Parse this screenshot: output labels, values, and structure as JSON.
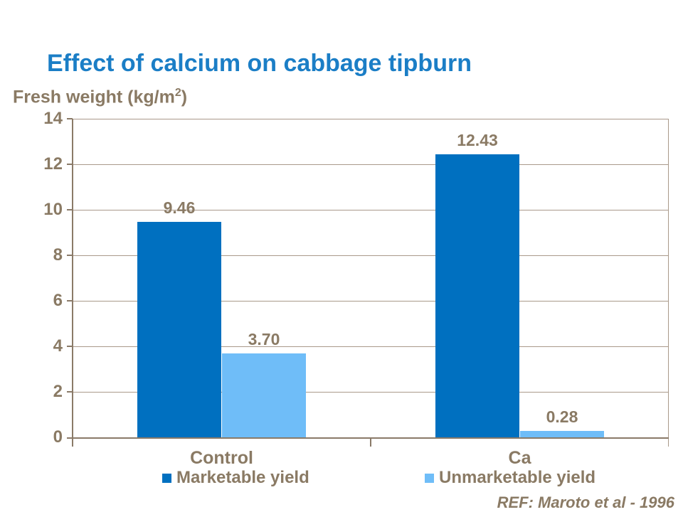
{
  "slide": {
    "title": "Effect of calcium on cabbage tipburn",
    "reference": "REF: Maroto et al - 1996"
  },
  "axis_title_parts": {
    "prefix": "Fresh weight (kg/m",
    "sup": "2",
    "suffix": ")"
  },
  "colors": {
    "title_blue": "#1B7EC6",
    "text_brown": "#8A7A64",
    "axis_brown": "#8A7A68",
    "grid_brown": "#A9998A",
    "marketable_blue": "#0070C0",
    "unmarketable_blue": "#6FBDF8",
    "background": "#FFFFFF"
  },
  "chart_data": {
    "type": "bar",
    "title": "Effect of calcium on cabbage tipburn",
    "xlabel": "",
    "ylabel": "Fresh weight (kg/m2)",
    "categories": [
      "Control",
      "Ca"
    ],
    "series": [
      {
        "name": "Marketable yield",
        "color": "#0070C0",
        "values": [
          9.46,
          12.43
        ],
        "labels": [
          "9.46",
          "12.43"
        ]
      },
      {
        "name": "Unmarketable yield",
        "color": "#6FBDF8",
        "values": [
          3.7,
          0.28
        ],
        "labels": [
          "3.70",
          "0.28"
        ]
      }
    ],
    "ylim": [
      0,
      14
    ],
    "yticks": [
      0,
      2,
      4,
      6,
      8,
      10,
      12,
      14
    ],
    "grid": true,
    "legend_position": "bottom"
  }
}
